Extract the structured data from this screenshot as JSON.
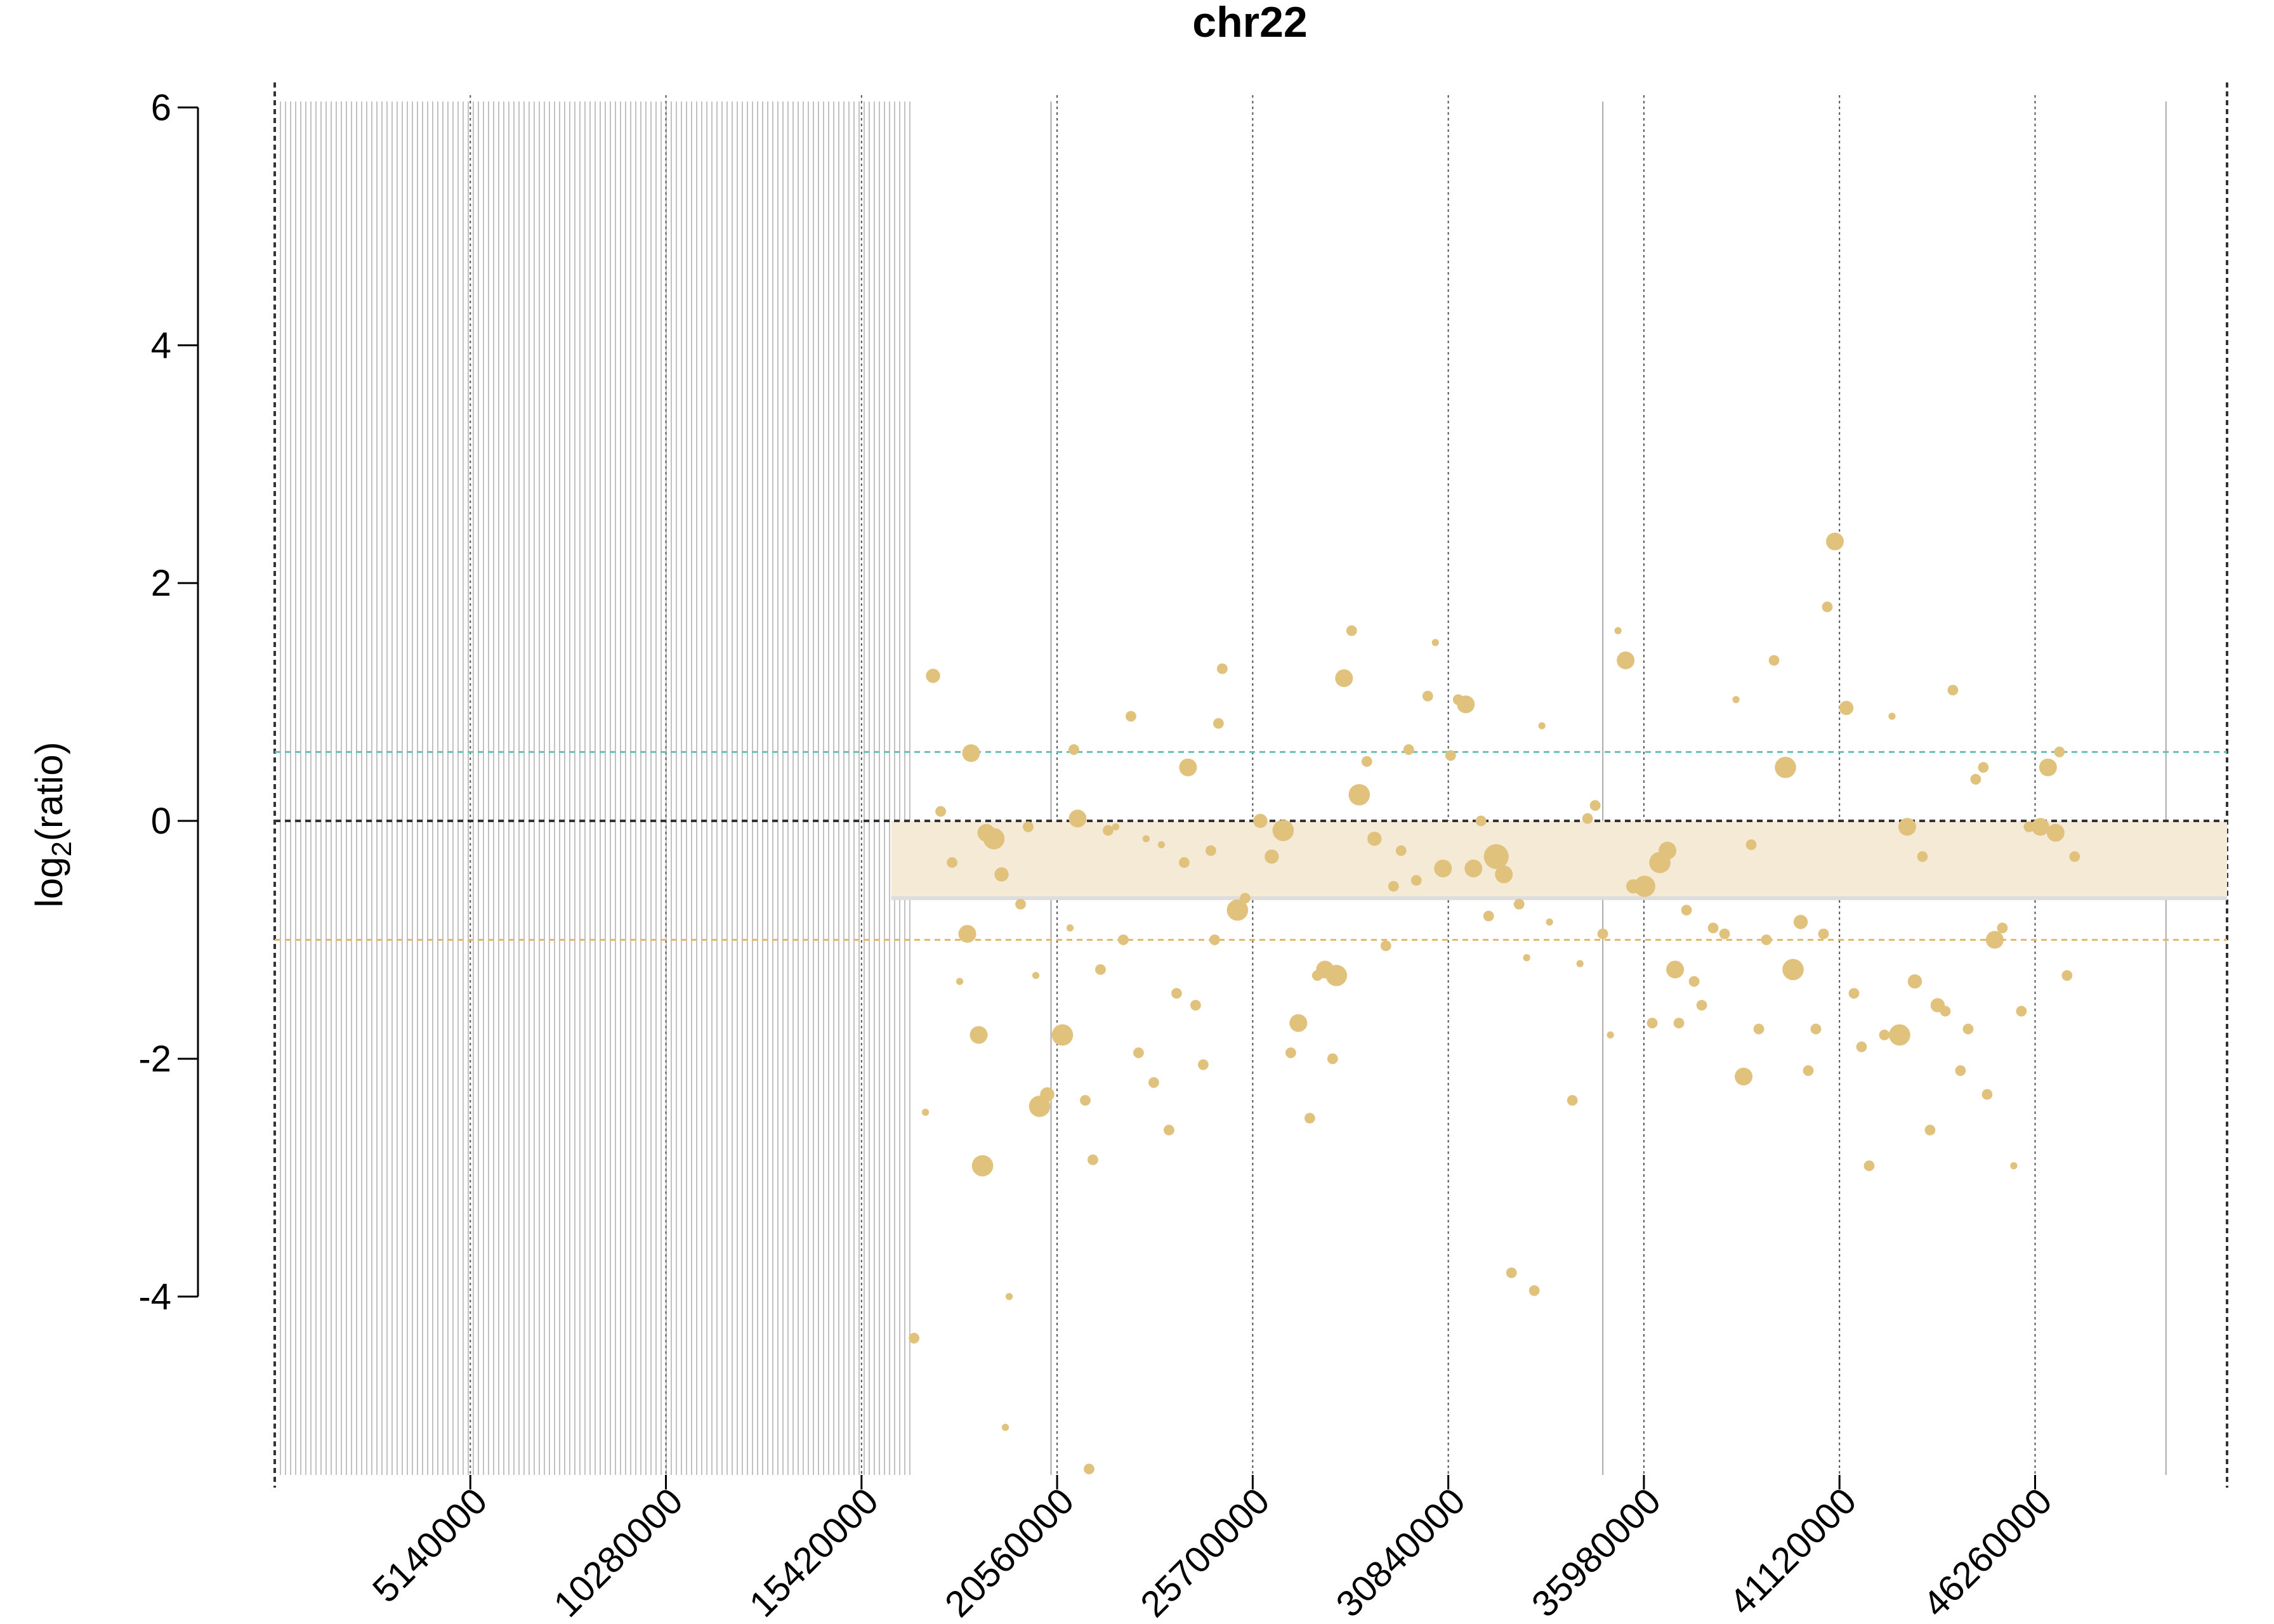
{
  "chart_data": {
    "type": "scatter",
    "title": "chr22",
    "ylabel": "log2(ratio)",
    "ylabel_base": "log",
    "ylabel_sub": "2",
    "ylabel_rest": "(ratio)",
    "xlabel": "",
    "xlim": [
      0,
      51304566
    ],
    "ylim": [
      -5.5,
      6.05
    ],
    "x_ticks": [
      5140000,
      10280000,
      15420000,
      20560000,
      25700000,
      30840000,
      35980000,
      41120000,
      46260000
    ],
    "x_tick_labels": [
      "5140000",
      "10280000",
      "15420000",
      "20560000",
      "25700000",
      "30840000",
      "35980000",
      "41120000",
      "46260000"
    ],
    "y_ticks": [
      6,
      4,
      2,
      0,
      -2,
      -4
    ],
    "y_tick_labels": [
      "6",
      "4",
      "2",
      "0",
      "-2",
      "-4"
    ],
    "reference_lines": [
      {
        "y": 0,
        "style": "dashed",
        "color": "#333333"
      },
      {
        "y": 0.58,
        "style": "dashed",
        "color": "#66c2b8"
      },
      {
        "y": -1.0,
        "style": "dashed",
        "color": "#e6b86b"
      }
    ],
    "segment": {
      "x_start": 16200000,
      "x_end": 51304566,
      "y_top": 0.0,
      "y_bottom": -0.65,
      "color": "#f5ead6",
      "line_color": "#dddddd"
    },
    "gap_region": {
      "x_start": 150000,
      "x_end": 16800000,
      "color": "#999999"
    },
    "solid_vlines": [
      20400000,
      34900000,
      49700000
    ],
    "dotted_vlines": [
      0,
      5140000,
      10280000,
      15420000,
      20560000,
      25700000,
      30840000,
      35980000,
      41120000,
      46260000,
      51304566
    ],
    "point_color": "#e0c27d",
    "points": [
      [
        16800000,
        -4.35,
        3
      ],
      [
        17100000,
        -2.45,
        2
      ],
      [
        17300000,
        1.22,
        4
      ],
      [
        17500000,
        0.08,
        3
      ],
      [
        17800000,
        -0.35,
        3
      ],
      [
        18000000,
        -1.35,
        2
      ],
      [
        18200000,
        -0.95,
        5
      ],
      [
        18300000,
        0.57,
        5
      ],
      [
        18500000,
        -1.8,
        5
      ],
      [
        18600000,
        -2.9,
        6
      ],
      [
        18700000,
        -0.1,
        5
      ],
      [
        18900000,
        -0.15,
        6
      ],
      [
        19100000,
        -0.45,
        4
      ],
      [
        19300000,
        -4.0,
        2
      ],
      [
        19200000,
        -5.1,
        2
      ],
      [
        19600000,
        -0.7,
        3
      ],
      [
        19800000,
        -0.05,
        3
      ],
      [
        20000000,
        -1.3,
        2
      ],
      [
        20100000,
        -2.4,
        6
      ],
      [
        20300000,
        -2.3,
        4
      ],
      [
        20700000,
        -1.8,
        6
      ],
      [
        20900000,
        -0.9,
        2
      ],
      [
        21000000,
        0.6,
        3
      ],
      [
        21100000,
        0.02,
        5
      ],
      [
        21300000,
        -2.35,
        3
      ],
      [
        21500000,
        -2.85,
        3
      ],
      [
        21700000,
        -1.25,
        3
      ],
      [
        21900000,
        -0.08,
        3
      ],
      [
        21400000,
        -5.45,
        3
      ],
      [
        22100000,
        -0.05,
        2
      ],
      [
        22300000,
        -1.0,
        3
      ],
      [
        22500000,
        0.88,
        3
      ],
      [
        22700000,
        -1.95,
        3
      ],
      [
        22900000,
        -0.15,
        2
      ],
      [
        23100000,
        -2.2,
        3
      ],
      [
        23300000,
        -0.2,
        2
      ],
      [
        23500000,
        -2.6,
        3
      ],
      [
        23700000,
        -1.45,
        3
      ],
      [
        23900000,
        -0.35,
        3
      ],
      [
        24000000,
        0.45,
        5
      ],
      [
        24200000,
        -1.55,
        3
      ],
      [
        24400000,
        -2.05,
        3
      ],
      [
        24600000,
        -0.25,
        3
      ],
      [
        24700000,
        -1.0,
        3
      ],
      [
        24900000,
        1.28,
        3
      ],
      [
        24800000,
        0.82,
        3
      ],
      [
        25300000,
        -0.75,
        6
      ],
      [
        25500000,
        -0.65,
        3
      ],
      [
        25900000,
        0.0,
        4
      ],
      [
        26200000,
        -0.3,
        4
      ],
      [
        26500000,
        -0.08,
        6
      ],
      [
        26700000,
        -1.95,
        3
      ],
      [
        26900000,
        -1.7,
        5
      ],
      [
        27200000,
        -2.5,
        3
      ],
      [
        27400000,
        -1.3,
        3
      ],
      [
        27600000,
        -1.25,
        5
      ],
      [
        27800000,
        -2.0,
        3
      ],
      [
        27900000,
        -1.3,
        6
      ],
      [
        28100000,
        1.2,
        5
      ],
      [
        28300000,
        1.6,
        3
      ],
      [
        28500000,
        0.22,
        6
      ],
      [
        28700000,
        0.5,
        3
      ],
      [
        28900000,
        -0.15,
        4
      ],
      [
        29200000,
        -1.05,
        3
      ],
      [
        29400000,
        -0.55,
        3
      ],
      [
        29600000,
        -0.25,
        3
      ],
      [
        29800000,
        0.6,
        3
      ],
      [
        30000000,
        -0.5,
        3
      ],
      [
        30300000,
        1.05,
        3
      ],
      [
        30500000,
        1.5,
        2
      ],
      [
        30700000,
        -0.4,
        5
      ],
      [
        30900000,
        0.55,
        3
      ],
      [
        31100000,
        1.02,
        3
      ],
      [
        31300000,
        0.98,
        5
      ],
      [
        31500000,
        -0.4,
        5
      ],
      [
        31700000,
        0.0,
        3
      ],
      [
        31900000,
        -0.8,
        3
      ],
      [
        32100000,
        -0.3,
        7
      ],
      [
        32300000,
        -0.45,
        5
      ],
      [
        32500000,
        -3.8,
        3
      ],
      [
        32700000,
        -0.7,
        3
      ],
      [
        32900000,
        -1.15,
        2
      ],
      [
        33100000,
        -3.95,
        3
      ],
      [
        33300000,
        0.8,
        2
      ],
      [
        33500000,
        -0.85,
        2
      ],
      [
        34100000,
        -2.35,
        3
      ],
      [
        34300000,
        -1.2,
        2
      ],
      [
        34500000,
        0.02,
        3
      ],
      [
        34700000,
        0.13,
        3
      ],
      [
        34900000,
        -0.95,
        3
      ],
      [
        35100000,
        -1.8,
        2
      ],
      [
        35300000,
        1.6,
        2
      ],
      [
        35500000,
        1.35,
        5
      ],
      [
        35700000,
        -0.55,
        4
      ],
      [
        36000000,
        -0.55,
        6
      ],
      [
        36200000,
        -1.7,
        3
      ],
      [
        36400000,
        -0.35,
        6
      ],
      [
        36600000,
        -0.25,
        5
      ],
      [
        36800000,
        -1.25,
        5
      ],
      [
        36900000,
        -1.7,
        3
      ],
      [
        37100000,
        -0.75,
        3
      ],
      [
        37300000,
        -1.35,
        3
      ],
      [
        37500000,
        -1.55,
        3
      ],
      [
        37800000,
        -0.9,
        3
      ],
      [
        38100000,
        -0.95,
        3
      ],
      [
        38400000,
        1.02,
        2
      ],
      [
        38600000,
        -2.15,
        5
      ],
      [
        38800000,
        -0.2,
        3
      ],
      [
        39000000,
        -1.75,
        3
      ],
      [
        39200000,
        -1.0,
        3
      ],
      [
        39400000,
        1.35,
        3
      ],
      [
        39700000,
        0.45,
        6
      ],
      [
        39900000,
        -1.25,
        6
      ],
      [
        40100000,
        -0.85,
        4
      ],
      [
        40300000,
        -2.1,
        3
      ],
      [
        40500000,
        -1.75,
        3
      ],
      [
        40700000,
        -0.95,
        3
      ],
      [
        40800000,
        1.8,
        3
      ],
      [
        41000000,
        2.35,
        5
      ],
      [
        41300000,
        0.95,
        4
      ],
      [
        41500000,
        -1.45,
        3
      ],
      [
        41700000,
        -1.9,
        3
      ],
      [
        41900000,
        -2.9,
        3
      ],
      [
        42300000,
        -1.8,
        3
      ],
      [
        42500000,
        0.88,
        2
      ],
      [
        42700000,
        -1.8,
        6
      ],
      [
        42900000,
        -0.05,
        5
      ],
      [
        43100000,
        -1.35,
        4
      ],
      [
        43300000,
        -0.3,
        3
      ],
      [
        43500000,
        -2.6,
        3
      ],
      [
        43700000,
        -1.55,
        4
      ],
      [
        43900000,
        -1.6,
        3
      ],
      [
        44100000,
        1.1,
        3
      ],
      [
        44300000,
        -2.1,
        3
      ],
      [
        44500000,
        -1.75,
        3
      ],
      [
        44700000,
        0.35,
        3
      ],
      [
        44900000,
        0.45,
        3
      ],
      [
        45000000,
        -2.3,
        3
      ],
      [
        45200000,
        -1.0,
        5
      ],
      [
        45400000,
        -0.9,
        3
      ],
      [
        45700000,
        -2.9,
        2
      ],
      [
        45900000,
        -1.6,
        3
      ],
      [
        46100000,
        -0.05,
        3
      ],
      [
        46400000,
        -0.05,
        5
      ],
      [
        46600000,
        0.45,
        5
      ],
      [
        46800000,
        -0.1,
        5
      ],
      [
        46900000,
        0.58,
        3
      ],
      [
        47100000,
        -1.3,
        3
      ],
      [
        47300000,
        -0.3,
        3
      ]
    ]
  }
}
